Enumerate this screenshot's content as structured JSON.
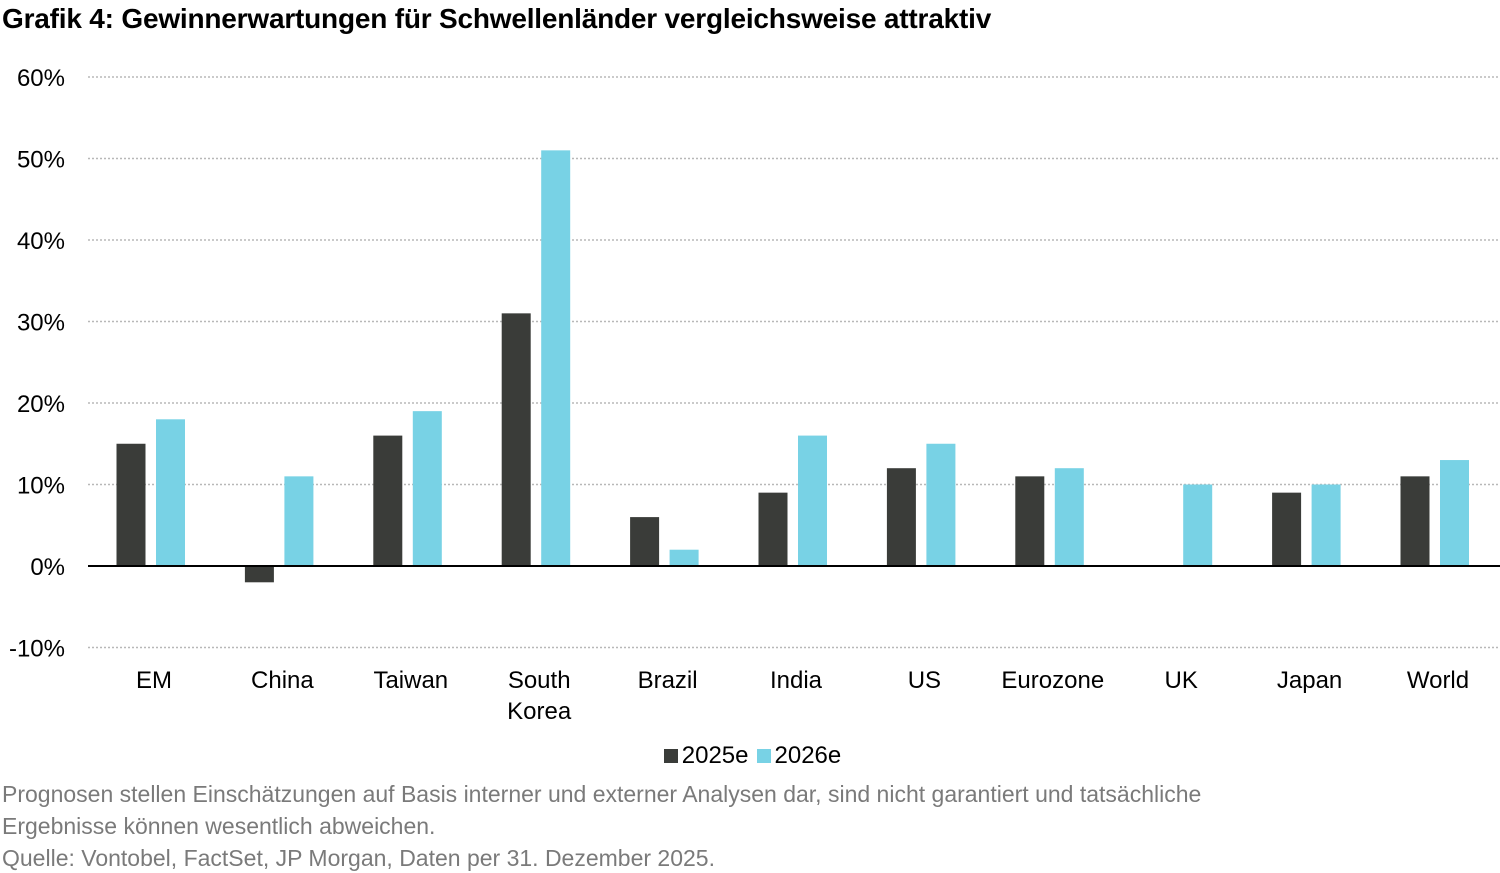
{
  "title": "Grafik 4: Gewinnerwartungen für Schwellenländer vergleichsweise attraktiv",
  "colors": {
    "series_2025": "#3a3c39",
    "series_2026": "#78d2e5",
    "grid": "#b8b8b8",
    "axis": "#000000",
    "footnote": "#7a7a7a"
  },
  "legend": {
    "items": [
      {
        "label": "2025e",
        "color": "#3a3c39"
      },
      {
        "label": "2026e",
        "color": "#78d2e5"
      }
    ]
  },
  "footnotes": {
    "line1": "Prognosen stellen Einschätzungen auf Basis interner und externer Analysen dar, sind nicht garantiert und tatsächliche",
    "line2": "Ergebnisse können wesentlich abweichen.",
    "line3": "Quelle: Vontobel, FactSet, JP Morgan, Daten per 31. Dezember 2025."
  },
  "chart_data": {
    "type": "bar",
    "title": "Grafik 4: Gewinnerwartungen für Schwellenländer vergleichsweise attraktiv",
    "xlabel": "",
    "ylabel": "",
    "categories": [
      "EM",
      "China",
      "Taiwan",
      "South Korea",
      "Brazil",
      "India",
      "US",
      "Eurozone",
      "UK",
      "Japan",
      "World"
    ],
    "category_labels": [
      [
        "EM"
      ],
      [
        "China"
      ],
      [
        "Taiwan"
      ],
      [
        "South",
        "Korea"
      ],
      [
        "Brazil"
      ],
      [
        "India"
      ],
      [
        "US"
      ],
      [
        "Eurozone"
      ],
      [
        "UK"
      ],
      [
        "Japan"
      ],
      [
        "World"
      ]
    ],
    "series": [
      {
        "name": "2025e",
        "color": "#3a3c39",
        "values": [
          15,
          -2,
          16,
          31,
          6,
          9,
          12,
          11,
          0,
          9,
          11
        ]
      },
      {
        "name": "2026e",
        "color": "#78d2e5",
        "values": [
          18,
          11,
          19,
          51,
          2,
          16,
          15,
          12,
          10,
          10,
          13
        ]
      }
    ],
    "ylim": [
      -10,
      60
    ],
    "yticks": [
      60,
      50,
      40,
      30,
      20,
      10,
      0,
      -10
    ],
    "ytick_labels": [
      "60%",
      "50%",
      "40%",
      "30%",
      "20%",
      "10%",
      "0%",
      "-10%"
    ],
    "grid": true,
    "grid_style": "dotted",
    "legend_position": "bottom"
  }
}
